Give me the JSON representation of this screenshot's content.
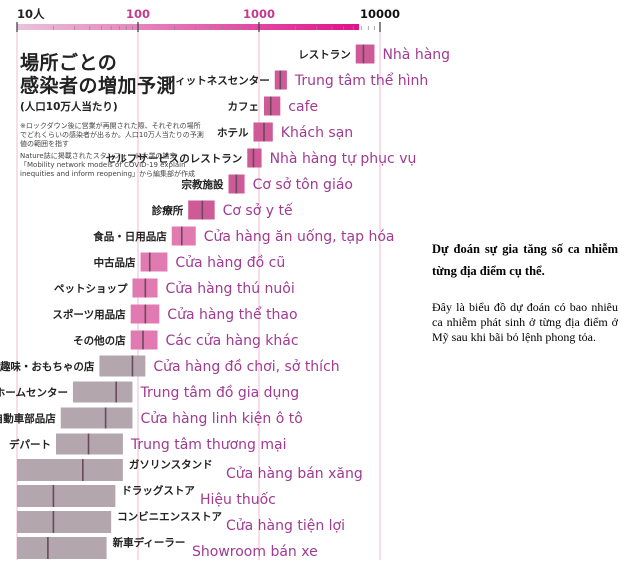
{
  "chart_data": {
    "type": "bar",
    "xscale": "log",
    "xlim": [
      10,
      10000
    ],
    "x_tick_labels": [
      "10人",
      "100",
      "1000",
      "10000"
    ],
    "title": "場所ごとの感染者の増加予測",
    "subtitle": "(人口10万人当たり)",
    "note": "※ロックダウン後に営業が再開された際、それぞれの場所でどれくらいの感染者が出るか。人口10万人当たりの予測値の範囲を指す",
    "source": "Nature誌に掲載されたスタンフォード大学の論文「Mobility network models of COVID-19 explain inequities and inform reopening」から編集部が作成",
    "categories": [
      {
        "jp": "レストラン",
        "vi": "Nhà hàng",
        "low": 6300,
        "mid": 7300,
        "high": 9000
      },
      {
        "jp": "フィットネスセンター",
        "vi": "Trung tâm thể hình",
        "low": 1350,
        "mid": 1500,
        "high": 1700
      },
      {
        "jp": "カフェ",
        "vi": "cafe",
        "low": 1100,
        "mid": 1250,
        "high": 1500
      },
      {
        "jp": "ホテル",
        "vi": "Khách sạn",
        "low": 900,
        "mid": 1100,
        "high": 1300
      },
      {
        "jp": "セルフサービスのレストラン",
        "vi": "Nhà hàng tự phục vụ",
        "low": 800,
        "mid": 900,
        "high": 1050
      },
      {
        "jp": "宗教施設",
        "vi": "Cơ sở tôn giáo",
        "low": 560,
        "mid": 650,
        "high": 760
      },
      {
        "jp": "診療所",
        "vi": "Cơ sở y tế",
        "low": 260,
        "mid": 340,
        "high": 430
      },
      {
        "jp": "食品・日用品店",
        "vi": "Cửa hàng ăn uống, tạp hóa",
        "low": 190,
        "mid": 230,
        "high": 300
      },
      {
        "jp": "中古品店",
        "vi": "Cửa hàng đồ cũ",
        "low": 105,
        "mid": 125,
        "high": 175
      },
      {
        "jp": "ペットショップ",
        "vi": "Cửa hàng thú nuôi",
        "low": 90,
        "mid": 115,
        "high": 145
      },
      {
        "jp": "スポーツ用品店",
        "vi": "Cửa hàng thể thao",
        "low": 87,
        "mid": 115,
        "high": 150
      },
      {
        "jp": "その他の店",
        "vi": "Các cửa hàng khác",
        "low": 87,
        "mid": 110,
        "high": 145
      },
      {
        "jp": "趣味・おもちゃの店",
        "vi": "Cửa hàng đồ chơi, sở thích",
        "low": 48,
        "mid": 90,
        "high": 115
      },
      {
        "jp": "ホームセンター",
        "vi": "Trung tâm đồ gia dụng",
        "low": 29,
        "mid": 66,
        "high": 90
      },
      {
        "jp": "自動車部品店",
        "vi": "Cửa hàng linh kiện ô tô",
        "low": 23,
        "mid": 54,
        "high": 90
      },
      {
        "jp": "デパート",
        "vi": "Trung tâm thương mại",
        "low": 21,
        "mid": 39,
        "high": 75
      },
      {
        "jp": "ガソリンスタンド",
        "vi": "Cửa hàng bán xăng",
        "low": 10,
        "mid": 35,
        "high": 75
      },
      {
        "jp": "ドラッグストア",
        "vi": "Hiệu thuốc",
        "low": 10,
        "mid": 20,
        "high": 65
      },
      {
        "jp": "コンビニエンスストア",
        "vi": "Cửa hàng tiện lợi",
        "low": 10,
        "mid": 20,
        "high": 60
      },
      {
        "jp": "新車ディーラー",
        "vi": "Showroom bán xe",
        "low": 10,
        "mid": 18,
        "high": 55
      }
    ]
  },
  "caption": {
    "title": "Dự đoán sự gia tăng số ca nhiễm từng địa điểm cụ thể.",
    "body": "Đây là biểu đồ dự đoán có bao nhiêu ca nhiễm phát sinh ở từng địa điểm ở Mỹ sau khi bãi bỏ lệnh phong tỏa."
  },
  "colors": {
    "axis_gradient_start": "#d9a3c4",
    "axis_gradient_end": "#e0128a",
    "bar_pink": "#e07ab0",
    "bar_pink_dark": "#cf5a98",
    "bar_gray": "#b3a6ad",
    "median_line": "#6a4a5a",
    "vi_label": "#a03a92",
    "gridline": "#f0b8d4"
  }
}
